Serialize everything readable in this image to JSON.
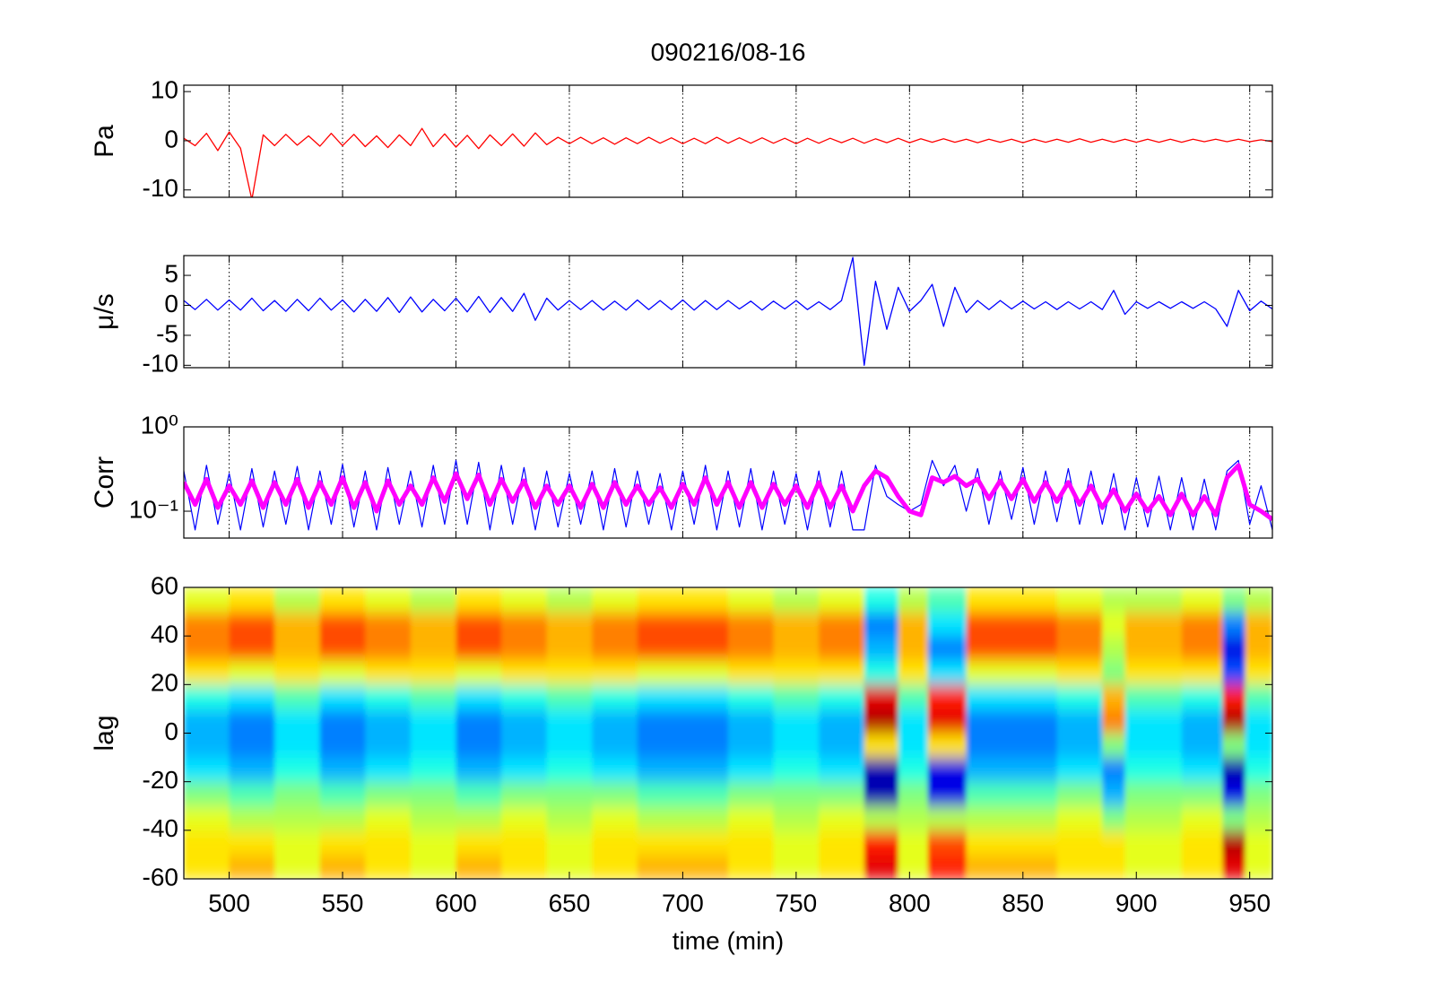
{
  "chart_data": [
    {
      "type": "line",
      "title": "090216/08-16",
      "ylabel": "Pa",
      "grid": true,
      "xlim": [
        480,
        960
      ],
      "xticks": [
        500,
        550,
        600,
        650,
        700,
        750,
        800,
        850,
        900,
        950
      ],
      "ylim": [
        -11.5,
        11.3
      ],
      "yticks": [
        -10,
        0,
        10
      ],
      "x": [
        480,
        485,
        490,
        495,
        500,
        505,
        510,
        515,
        520,
        525,
        530,
        535,
        540,
        545,
        550,
        555,
        560,
        565,
        570,
        575,
        580,
        585,
        590,
        595,
        600,
        605,
        610,
        615,
        620,
        625,
        630,
        635,
        640,
        645,
        650,
        655,
        660,
        665,
        670,
        675,
        680,
        685,
        690,
        695,
        700,
        705,
        710,
        715,
        720,
        725,
        730,
        735,
        740,
        745,
        750,
        755,
        760,
        765,
        770,
        775,
        780,
        785,
        790,
        795,
        800,
        805,
        810,
        815,
        820,
        825,
        830,
        835,
        840,
        845,
        850,
        855,
        860,
        865,
        870,
        875,
        880,
        885,
        890,
        895,
        900,
        905,
        910,
        915,
        920,
        925,
        930,
        935,
        940,
        945,
        950,
        955,
        960
      ],
      "series": [
        {
          "color": "#ff0000",
          "linewidth": 1.3,
          "values": [
            0.5,
            -1,
            1.5,
            -2,
            1.8,
            -1.5,
            -12,
            1.2,
            -1,
            1.3,
            -0.9,
            1,
            -1.1,
            1.5,
            -1,
            1.3,
            -1.2,
            1,
            -1.4,
            1.2,
            -1,
            2.5,
            -1.2,
            1.4,
            -1.3,
            1.1,
            -1.6,
            1.2,
            -1,
            1.4,
            -1.1,
            1.6,
            -0.8,
            0.7,
            -0.6,
            0.7,
            -0.6,
            0.6,
            -0.7,
            0.6,
            -0.6,
            0.7,
            -0.5,
            0.6,
            -0.6,
            0.5,
            -0.6,
            0.7,
            -0.5,
            0.6,
            -0.5,
            0.6,
            -0.5,
            0.5,
            -0.6,
            0.5,
            -0.5,
            0.5,
            -0.4,
            0.5,
            -0.5,
            0.4,
            -0.4,
            0.5,
            -0.4,
            0.4,
            -0.3,
            0.4,
            -0.3,
            0.3,
            -0.4,
            0.3,
            -0.3,
            0.3,
            -0.4,
            0.3,
            -0.3,
            0.3,
            -0.3,
            0.4,
            -0.3,
            0.3,
            -0.3,
            0.3,
            -0.3,
            0.3,
            -0.3,
            0.3,
            -0.3,
            0.3,
            -0.2,
            0.3,
            -0.2,
            0.3,
            -0.2,
            0.2,
            -0.2
          ]
        }
      ]
    },
    {
      "type": "line",
      "ylabel": "μ/s",
      "grid": true,
      "xlim": [
        480,
        960
      ],
      "xticks": [
        500,
        550,
        600,
        650,
        700,
        750,
        800,
        850,
        900,
        950
      ],
      "ylim": [
        -10.4,
        8.3
      ],
      "yticks": [
        -10,
        -5,
        0,
        5
      ],
      "x": [
        480,
        485,
        490,
        495,
        500,
        505,
        510,
        515,
        520,
        525,
        530,
        535,
        540,
        545,
        550,
        555,
        560,
        565,
        570,
        575,
        580,
        585,
        590,
        595,
        600,
        605,
        610,
        615,
        620,
        625,
        630,
        635,
        640,
        645,
        650,
        655,
        660,
        665,
        670,
        675,
        680,
        685,
        690,
        695,
        700,
        705,
        710,
        715,
        720,
        725,
        730,
        735,
        740,
        745,
        750,
        755,
        760,
        765,
        770,
        775,
        780,
        785,
        790,
        795,
        800,
        805,
        810,
        815,
        820,
        825,
        830,
        835,
        840,
        845,
        850,
        855,
        860,
        865,
        870,
        875,
        880,
        885,
        890,
        895,
        900,
        905,
        910,
        915,
        920,
        925,
        930,
        935,
        940,
        945,
        950,
        955,
        960
      ],
      "series": [
        {
          "color": "#0000ff",
          "linewidth": 1.3,
          "values": [
            0.8,
            -0.7,
            1,
            -0.8,
            0.9,
            -0.8,
            1.2,
            -0.9,
            0.8,
            -1,
            1,
            -0.9,
            1.2,
            -0.8,
            0.9,
            -1.1,
            1,
            -1,
            1.3,
            -1.2,
            1.4,
            -1.1,
            1,
            -0.9,
            1.2,
            -1.1,
            1.5,
            -1.2,
            1.3,
            -1,
            2,
            -2.5,
            1.2,
            -0.8,
            0.8,
            -0.7,
            0.8,
            -0.8,
            0.7,
            -0.8,
            0.9,
            -0.7,
            0.8,
            -0.7,
            0.9,
            -0.8,
            0.8,
            -0.7,
            0.8,
            -0.6,
            0.7,
            -0.8,
            0.7,
            -0.6,
            0.8,
            -0.7,
            0.6,
            -0.7,
            0.8,
            8,
            -10,
            4,
            -4,
            3,
            -1,
            0.8,
            3.5,
            -3.5,
            3,
            -1.2,
            0.8,
            -0.7,
            0.8,
            -0.6,
            0.7,
            -0.6,
            0.6,
            -0.7,
            0.6,
            -0.6,
            0.6,
            -0.7,
            2.5,
            -1.5,
            0.6,
            -0.5,
            0.6,
            -0.5,
            0.6,
            -0.5,
            0.6,
            -0.6,
            -3.5,
            2.5,
            -0.9,
            0.7,
            -0.6
          ]
        }
      ]
    },
    {
      "type": "line",
      "ylabel": "Corr",
      "grid": true,
      "ylog": true,
      "xlim": [
        480,
        960
      ],
      "xticks": [
        500,
        550,
        600,
        650,
        700,
        750,
        800,
        850,
        900,
        950
      ],
      "ylim": [
        0.048,
        1
      ],
      "yticks": [
        {
          "value": 0.1,
          "label": "10⁻¹"
        },
        {
          "value": 1,
          "label": "10⁰"
        }
      ],
      "x": [
        480,
        485,
        490,
        495,
        500,
        505,
        510,
        515,
        520,
        525,
        530,
        535,
        540,
        545,
        550,
        555,
        560,
        565,
        570,
        575,
        580,
        585,
        590,
        595,
        600,
        605,
        610,
        615,
        620,
        625,
        630,
        635,
        640,
        645,
        650,
        655,
        660,
        665,
        670,
        675,
        680,
        685,
        690,
        695,
        700,
        705,
        710,
        715,
        720,
        725,
        730,
        735,
        740,
        745,
        750,
        755,
        760,
        765,
        770,
        775,
        780,
        785,
        790,
        795,
        800,
        805,
        810,
        815,
        820,
        825,
        830,
        835,
        840,
        845,
        850,
        855,
        860,
        865,
        870,
        875,
        880,
        885,
        890,
        895,
        900,
        905,
        910,
        915,
        920,
        925,
        930,
        935,
        940,
        945,
        950,
        955,
        960
      ],
      "series": [
        {
          "color": "#0000ff",
          "linewidth": 1.2,
          "values": [
            0.3,
            0.06,
            0.35,
            0.07,
            0.28,
            0.06,
            0.32,
            0.065,
            0.3,
            0.07,
            0.34,
            0.06,
            0.3,
            0.07,
            0.36,
            0.065,
            0.3,
            0.06,
            0.33,
            0.07,
            0.3,
            0.065,
            0.35,
            0.07,
            0.4,
            0.07,
            0.38,
            0.06,
            0.35,
            0.07,
            0.33,
            0.06,
            0.3,
            0.065,
            0.28,
            0.07,
            0.3,
            0.06,
            0.32,
            0.065,
            0.3,
            0.07,
            0.28,
            0.06,
            0.3,
            0.07,
            0.35,
            0.06,
            0.3,
            0.065,
            0.32,
            0.06,
            0.3,
            0.07,
            0.28,
            0.06,
            0.3,
            0.065,
            0.3,
            0.06,
            0.06,
            0.35,
            0.15,
            0.12,
            0.1,
            0.12,
            0.4,
            0.2,
            0.35,
            0.1,
            0.32,
            0.07,
            0.3,
            0.08,
            0.33,
            0.07,
            0.3,
            0.075,
            0.32,
            0.07,
            0.3,
            0.07,
            0.28,
            0.06,
            0.25,
            0.065,
            0.26,
            0.06,
            0.25,
            0.06,
            0.24,
            0.06,
            0.3,
            0.4,
            0.07,
            0.2,
            0.06
          ]
        },
        {
          "color": "#ff00ff",
          "linewidth": 5,
          "values": [
            0.22,
            0.12,
            0.24,
            0.11,
            0.2,
            0.12,
            0.23,
            0.11,
            0.22,
            0.12,
            0.24,
            0.11,
            0.22,
            0.12,
            0.25,
            0.11,
            0.22,
            0.1,
            0.23,
            0.12,
            0.2,
            0.12,
            0.25,
            0.13,
            0.28,
            0.14,
            0.27,
            0.12,
            0.24,
            0.13,
            0.23,
            0.11,
            0.2,
            0.12,
            0.2,
            0.11,
            0.21,
            0.11,
            0.22,
            0.12,
            0.2,
            0.12,
            0.19,
            0.11,
            0.21,
            0.12,
            0.25,
            0.12,
            0.22,
            0.11,
            0.22,
            0.11,
            0.21,
            0.12,
            0.2,
            0.11,
            0.22,
            0.11,
            0.2,
            0.1,
            0.2,
            0.3,
            0.25,
            0.15,
            0.1,
            0.09,
            0.25,
            0.22,
            0.26,
            0.2,
            0.24,
            0.14,
            0.23,
            0.14,
            0.24,
            0.13,
            0.22,
            0.13,
            0.22,
            0.12,
            0.2,
            0.11,
            0.18,
            0.1,
            0.16,
            0.1,
            0.15,
            0.09,
            0.16,
            0.09,
            0.15,
            0.09,
            0.25,
            0.35,
            0.12,
            0.1,
            0.08
          ]
        }
      ]
    },
    {
      "type": "heatmap",
      "ylabel": "lag",
      "xlabel": "time (min)",
      "grid": false,
      "xlim": [
        480,
        960
      ],
      "xticks": [
        500,
        550,
        600,
        650,
        700,
        750,
        800,
        850,
        900,
        950
      ],
      "ylim": [
        -60,
        60
      ],
      "yticks": [
        -60,
        -40,
        -20,
        0,
        20,
        40,
        60
      ],
      "clim": [
        -1,
        1
      ],
      "colormap": "jet",
      "xbins": [
        480,
        500,
        520,
        540,
        560,
        580,
        600,
        620,
        640,
        660,
        680,
        700,
        720,
        740,
        760,
        780,
        795,
        808,
        825,
        845,
        865,
        885,
        895,
        920,
        938,
        948,
        960
      ],
      "ybins": [
        -60,
        -50,
        -40,
        -30,
        -20,
        -10,
        0,
        10,
        20,
        30,
        40,
        50,
        60
      ],
      "z": [
        [
          0.3,
          0.3,
          0.2,
          0,
          -0.3,
          -0.4,
          -0.4,
          -0.2,
          0.3,
          0.5,
          0.5,
          0.2
        ],
        [
          0.4,
          0.3,
          0.1,
          -0.1,
          -0.4,
          -0.5,
          -0.5,
          -0.3,
          0.2,
          0.6,
          0.6,
          0.3
        ],
        [
          0.2,
          0.2,
          0.1,
          0,
          -0.2,
          -0.3,
          -0.3,
          -0.1,
          0.3,
          0.4,
          0.4,
          0.1
        ],
        [
          0.4,
          0.3,
          0.1,
          -0.1,
          -0.4,
          -0.5,
          -0.5,
          -0.3,
          0.2,
          0.6,
          0.6,
          0.3
        ],
        [
          0.3,
          0.3,
          0.2,
          0,
          -0.3,
          -0.4,
          -0.4,
          -0.2,
          0.3,
          0.5,
          0.5,
          0.2
        ],
        [
          0.2,
          0.2,
          0.1,
          0,
          -0.2,
          -0.3,
          -0.3,
          -0.1,
          0.3,
          0.4,
          0.4,
          0.1
        ],
        [
          0.4,
          0.3,
          0.1,
          -0.1,
          -0.4,
          -0.5,
          -0.5,
          -0.3,
          0.2,
          0.6,
          0.6,
          0.3
        ],
        [
          0.3,
          0.3,
          0.2,
          0,
          -0.3,
          -0.4,
          -0.4,
          -0.2,
          0.3,
          0.5,
          0.5,
          0.2
        ],
        [
          0.2,
          0.2,
          0.1,
          0,
          -0.2,
          -0.3,
          -0.3,
          -0.1,
          0.3,
          0.4,
          0.4,
          0.1
        ],
        [
          0.3,
          0.3,
          0.2,
          0,
          -0.3,
          -0.4,
          -0.4,
          -0.2,
          0.3,
          0.5,
          0.5,
          0.2
        ],
        [
          0.4,
          0.3,
          0.1,
          -0.1,
          -0.4,
          -0.5,
          -0.5,
          -0.3,
          0.2,
          0.6,
          0.6,
          0.3
        ],
        [
          0.4,
          0.3,
          0.1,
          -0.1,
          -0.4,
          -0.5,
          -0.5,
          -0.3,
          0.2,
          0.6,
          0.6,
          0.3
        ],
        [
          0.3,
          0.3,
          0.2,
          0,
          -0.3,
          -0.4,
          -0.4,
          -0.2,
          0.3,
          0.5,
          0.5,
          0.2
        ],
        [
          0.2,
          0.2,
          0.1,
          0,
          -0.2,
          -0.3,
          -0.3,
          -0.1,
          0.3,
          0.4,
          0.4,
          0.1
        ],
        [
          0.3,
          0.3,
          0.2,
          0,
          -0.3,
          -0.4,
          -0.4,
          -0.2,
          0.3,
          0.5,
          0.5,
          0.2
        ],
        [
          0.8,
          0.7,
          0.1,
          -0.9,
          -0.9,
          0.3,
          0.9,
          0.8,
          -0.2,
          -0.4,
          -0.5,
          -0.2
        ],
        [
          0.2,
          0.2,
          0.1,
          0,
          -0.2,
          -0.3,
          -0.3,
          -0.1,
          0.3,
          0.4,
          0.4,
          0.1
        ],
        [
          0.7,
          0.6,
          0.1,
          -0.8,
          -0.8,
          0.3,
          0.8,
          0.7,
          -0.3,
          -0.5,
          -0.3,
          -0.1
        ],
        [
          0.4,
          0.3,
          0.1,
          -0.1,
          -0.4,
          -0.5,
          -0.5,
          -0.3,
          0.2,
          0.6,
          0.6,
          0.3
        ],
        [
          0.4,
          0.3,
          0.1,
          -0.1,
          -0.4,
          -0.5,
          -0.5,
          -0.3,
          0.2,
          0.6,
          0.6,
          0.3
        ],
        [
          0.3,
          0.3,
          0.2,
          0,
          -0.3,
          -0.4,
          -0.4,
          -0.2,
          0.3,
          0.5,
          0.5,
          0.2
        ],
        [
          0.3,
          0.3,
          0,
          -0.4,
          -0.5,
          0,
          0.5,
          0.4,
          0,
          0.1,
          0.2,
          0.1
        ],
        [
          0.2,
          0.2,
          0.1,
          0,
          -0.2,
          -0.3,
          -0.3,
          -0.1,
          0.3,
          0.4,
          0.4,
          0.1
        ],
        [
          0.3,
          0.3,
          0.2,
          0,
          -0.3,
          -0.4,
          -0.4,
          -0.2,
          0.3,
          0.5,
          0.5,
          0.2
        ],
        [
          0.8,
          0.9,
          0,
          -0.8,
          -0.9,
          0,
          0.9,
          0.7,
          -0.6,
          -0.8,
          -0.5,
          0
        ],
        [
          0.2,
          0.2,
          0.1,
          0,
          -0.2,
          -0.3,
          -0.3,
          -0.1,
          0.3,
          0.4,
          0.4,
          0.1
        ]
      ]
    }
  ]
}
